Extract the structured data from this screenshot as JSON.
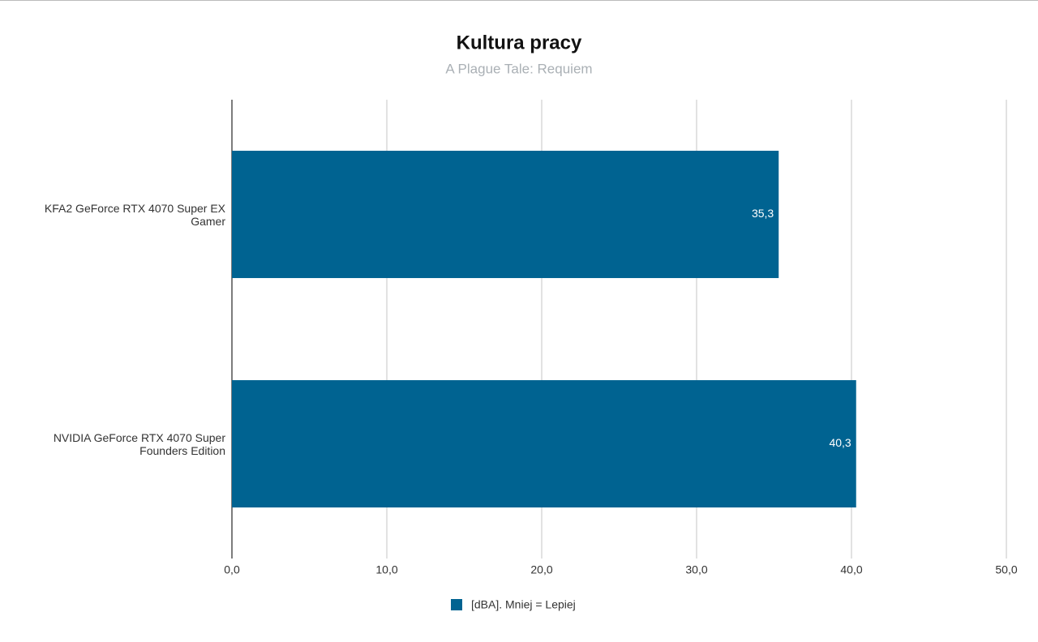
{
  "chart_data": {
    "type": "hbar",
    "title": "Kultura pracy",
    "subtitle": "A Plague Tale: Requiem",
    "categories": [
      "KFA2 GeForce RTX 4070 Super EX Gamer",
      "NVIDIA GeForce RTX 4070 Super Founders Edition"
    ],
    "series": [
      {
        "name": "[dBA]. Mniej = Lepiej",
        "color": "#006391",
        "values": [
          35.3,
          40.3
        ],
        "value_labels": [
          "35,3",
          "40,3"
        ]
      }
    ],
    "xlim": [
      0,
      50
    ],
    "xticks": [
      {
        "value": 0,
        "label": "0,0"
      },
      {
        "value": 10,
        "label": "10,0"
      },
      {
        "value": 20,
        "label": "20,0"
      },
      {
        "value": 30,
        "label": "30,0"
      },
      {
        "value": 40,
        "label": "40,0"
      },
      {
        "value": 50,
        "label": "50,0"
      }
    ],
    "grid": true,
    "legend": "bottom"
  }
}
